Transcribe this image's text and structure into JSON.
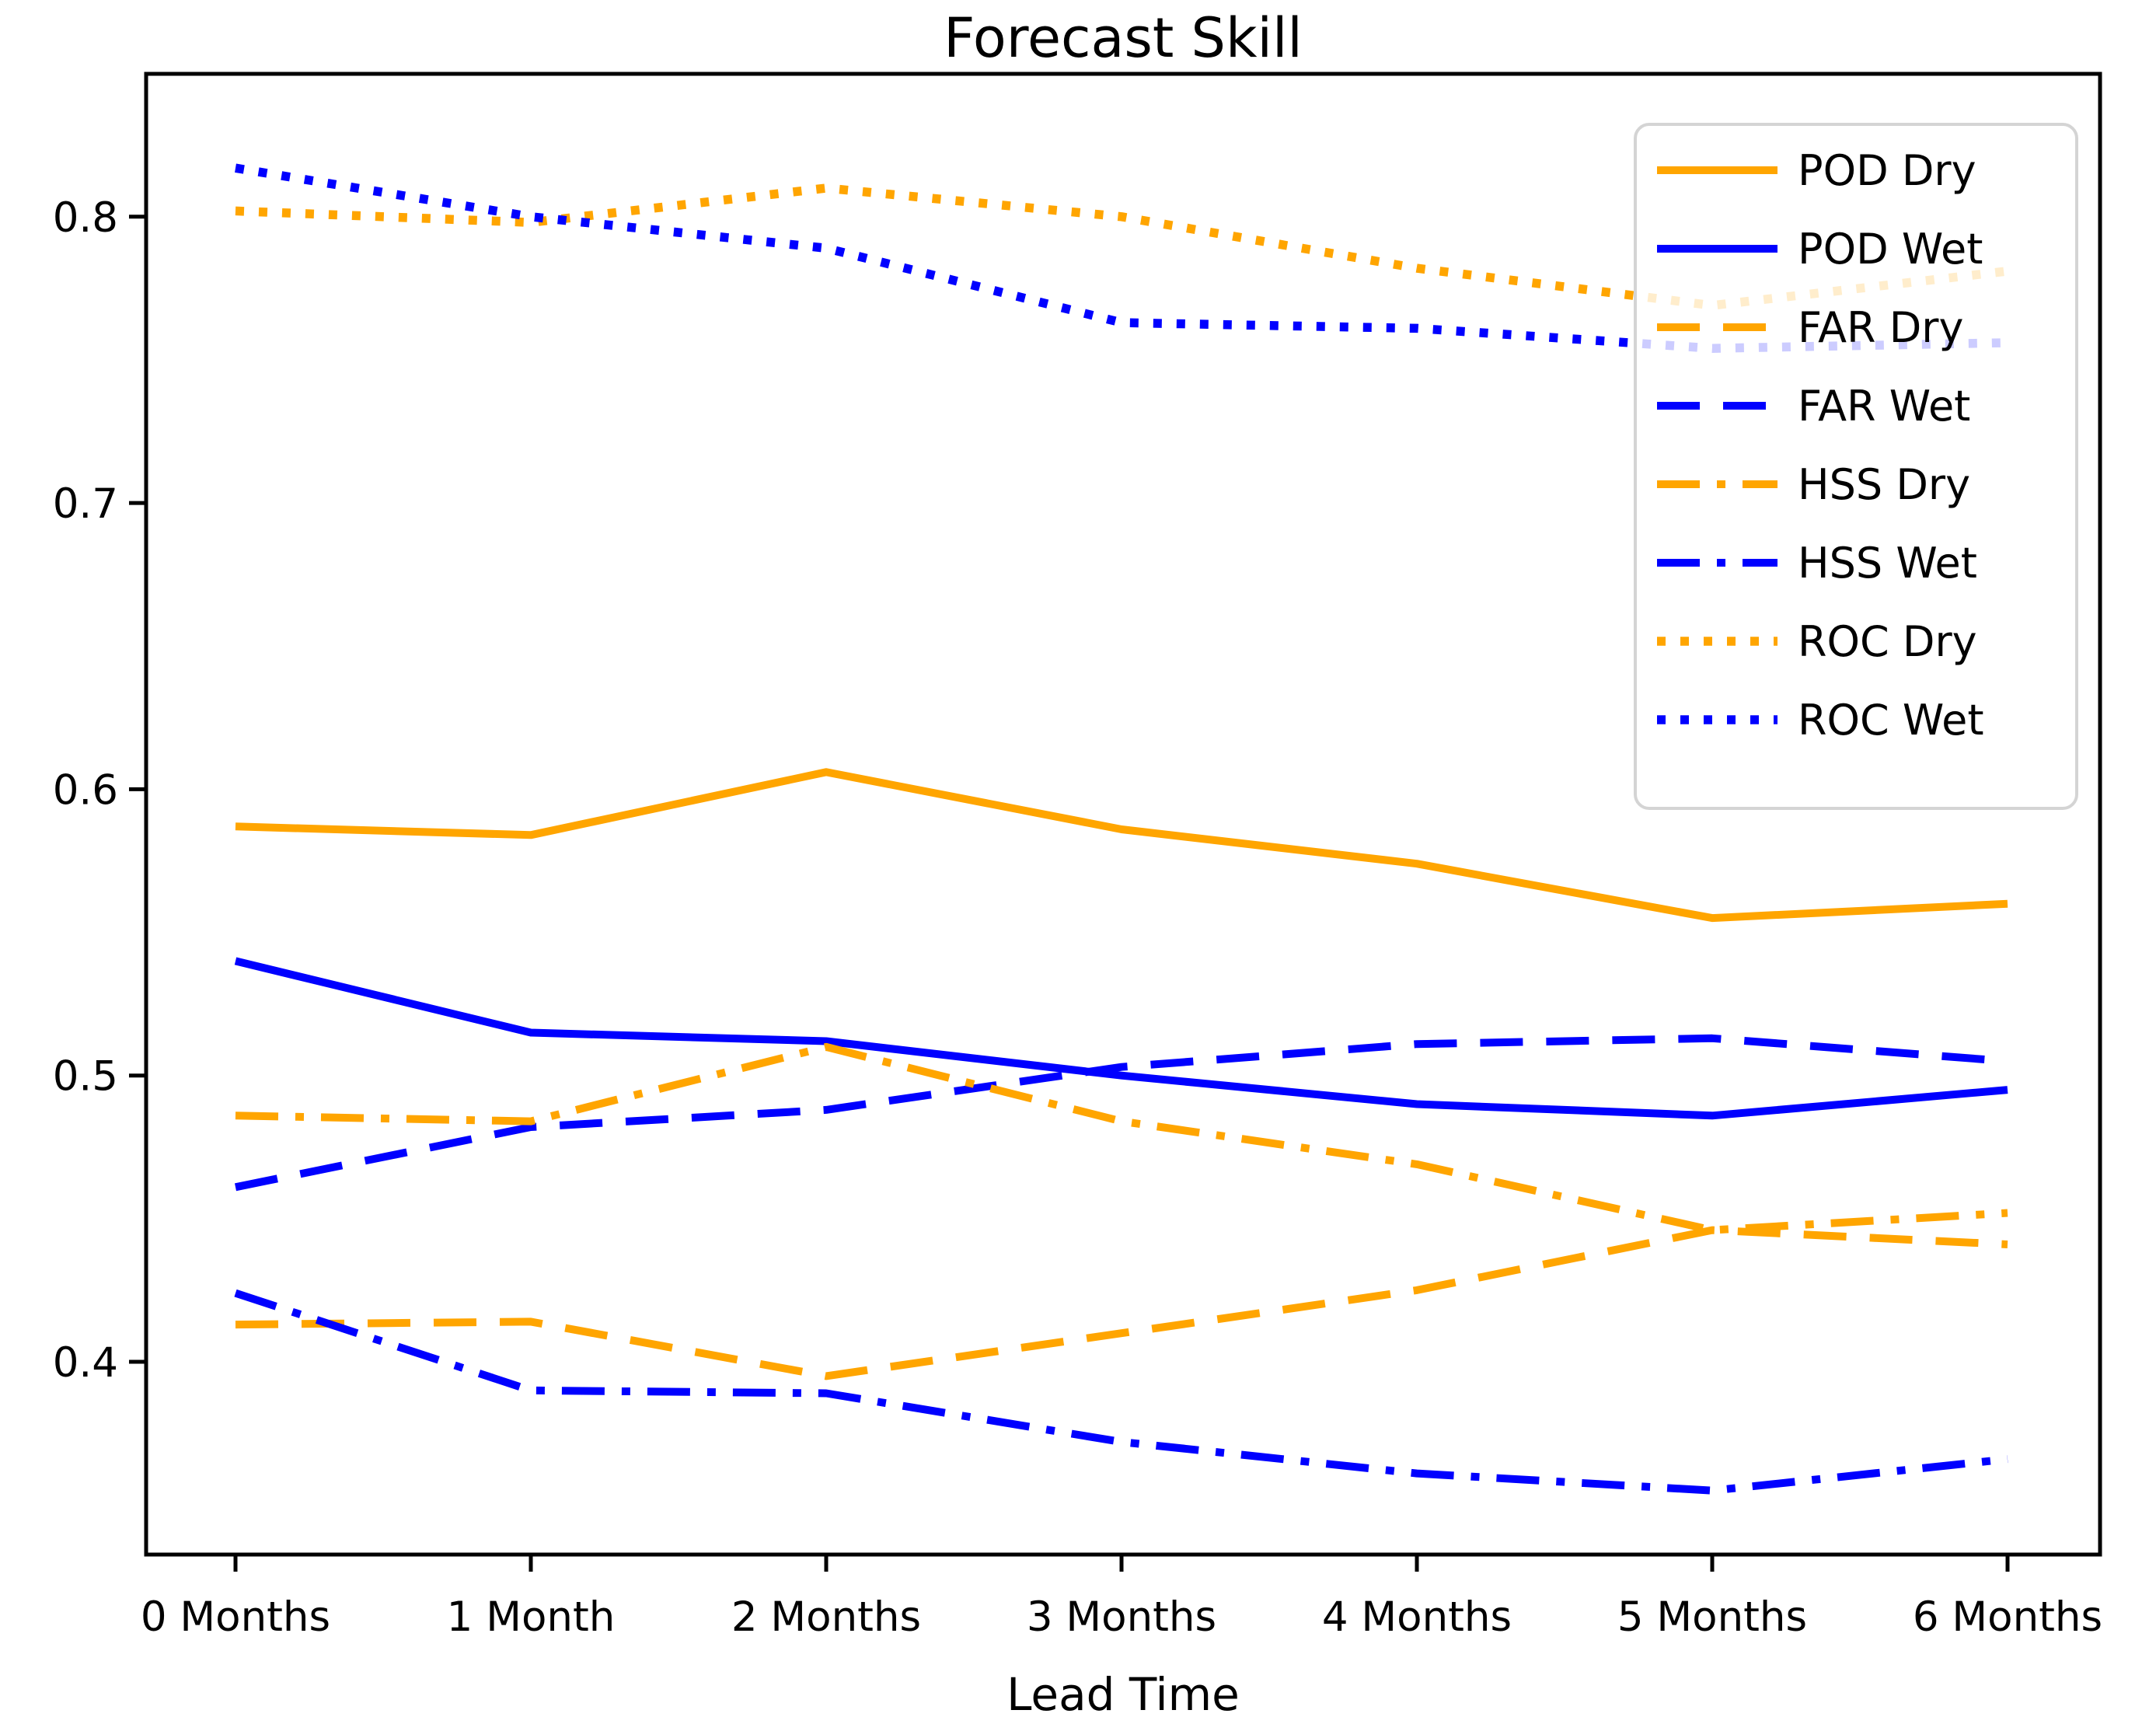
{
  "title": "Forecast Skill",
  "xlabel": "Lead Time",
  "colors": {
    "dry": "#FFA500",
    "wet": "#0000FF",
    "axis": "#000000",
    "background": "#FFFFFF",
    "legend_border": "#D4D4D4",
    "legend_fill": "#FFFFFF"
  },
  "chart_data": {
    "type": "line",
    "title": "Forecast Skill",
    "xlabel": "Lead Time",
    "ylabel": "",
    "categories": [
      "0 Months",
      "1 Month",
      "2 Months",
      "3 Months",
      "4 Months",
      "5 Months",
      "6 Months"
    ],
    "y_tick_labels": [
      "0.4",
      "0.5",
      "0.6",
      "0.7",
      "0.8"
    ],
    "y_tick_values": [
      0.4,
      0.5,
      0.6,
      0.7,
      0.8
    ],
    "ylim": [
      0.333,
      0.85
    ],
    "grid": false,
    "legend_position": "upper right",
    "series": [
      {
        "name": "POD Dry",
        "color": "#FFA500",
        "style": "solid",
        "values": [
          0.587,
          0.584,
          0.606,
          0.586,
          0.574,
          0.555,
          0.56
        ]
      },
      {
        "name": "POD Wet",
        "color": "#0000FF",
        "style": "solid",
        "values": [
          0.54,
          0.515,
          0.512,
          0.5,
          0.49,
          0.486,
          0.495
        ]
      },
      {
        "name": "FAR Dry",
        "color": "#FFA500",
        "style": "dashed",
        "values": [
          0.413,
          0.414,
          0.395,
          0.41,
          0.425,
          0.446,
          0.441
        ]
      },
      {
        "name": "FAR Wet",
        "color": "#0000FF",
        "style": "dashed",
        "values": [
          0.461,
          0.482,
          0.488,
          0.503,
          0.511,
          0.513,
          0.505
        ]
      },
      {
        "name": "HSS Dry",
        "color": "#FFA500",
        "style": "dashdot",
        "values": [
          0.486,
          0.484,
          0.51,
          0.484,
          0.469,
          0.446,
          0.452
        ]
      },
      {
        "name": "HSS Wet",
        "color": "#0000FF",
        "style": "dashdot",
        "values": [
          0.424,
          0.39,
          0.389,
          0.372,
          0.361,
          0.355,
          0.366
        ]
      },
      {
        "name": "ROC Dry",
        "color": "#FFA500",
        "style": "dotted",
        "values": [
          0.802,
          0.798,
          0.81,
          0.8,
          0.782,
          0.769,
          0.781
        ]
      },
      {
        "name": "ROC Wet",
        "color": "#0000FF",
        "style": "dotted",
        "values": [
          0.817,
          0.8,
          0.789,
          0.763,
          0.761,
          0.754,
          0.756
        ]
      }
    ]
  }
}
